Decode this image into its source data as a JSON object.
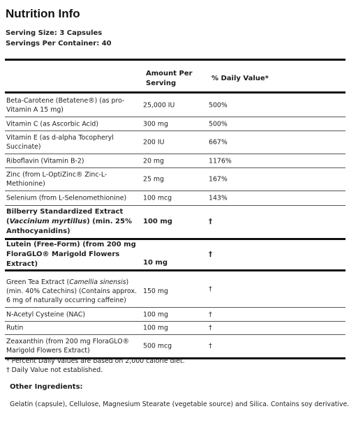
{
  "title": "Nutrition Info",
  "serving_size": "Serving Size: 3 Capsules",
  "servings_per_container": "Servings Per Container: 40",
  "table": {
    "header_amount": "Amount Per Serving",
    "header_dv": "% Daily Value*",
    "rows": [
      {
        "name": "Beta-Carotene (Betatene®) (as pro-Vitamin A 15 mg)",
        "amount": "25,000 IU",
        "dv": "500%"
      },
      {
        "name": "Vitamin C (as Ascorbic Acid)",
        "amount": "300 mg",
        "dv": "500%"
      },
      {
        "name": "Vitamin E (as d-alpha Tocopheryl Succinate)",
        "amount": "200 IU",
        "dv": "667%"
      },
      {
        "name": "Riboflavin (Vitamin B-2)",
        "amount": "20 mg",
        "dv": "1176%"
      },
      {
        "name": "Zinc (from L-OptiZinc® Zinc-L-Methionine)",
        "amount": "25 mg",
        "dv": "167%"
      },
      {
        "name": "Selenium (from L-Selenomethionine)",
        "amount": "100 mcg",
        "dv": "143%"
      },
      {
        "name_parts": [
          "Bilberry Standardized Extract (",
          "Vaccinium myrtillus",
          ") (min. 25% Anthocyanidins)"
        ],
        "amount": "100 mg",
        "dv": "†"
      },
      {
        "name": "Lutein (Free-Form) (from 200 mg FloraGLO® Marigold Flowers Extract)",
        "amount": "10 mg",
        "dv": "†"
      },
      {
        "name_parts": [
          "Green Tea Extract (",
          "Camellia sinensis",
          ") (min. 40% Catechins) (Contains approx. 6 mg of naturally occurring caffeine)"
        ],
        "amount": "150 mg",
        "dv": "†"
      },
      {
        "name": "N-Acetyl Cysteine (NAC)",
        "amount": "100 mg",
        "dv": "†"
      },
      {
        "name": "Rutin",
        "amount": "100 mg",
        "dv": "†"
      },
      {
        "name": "Zeaxanthin (from 200 mg FloraGLO® Marigold Flowers Extract)",
        "amount": "500 mcg",
        "dv": "†"
      }
    ],
    "footnote_1": "* Percent Daily Values are based on 2,000 calorie diet.",
    "footnote_2": "† Daily Value not established."
  },
  "other_ingredients": {
    "title": "Other Ingredients:",
    "text": "Gelatin (capsule), Cellulose, Magnesium Stearate (vegetable source) and Silica.  Contains soy derivative."
  }
}
